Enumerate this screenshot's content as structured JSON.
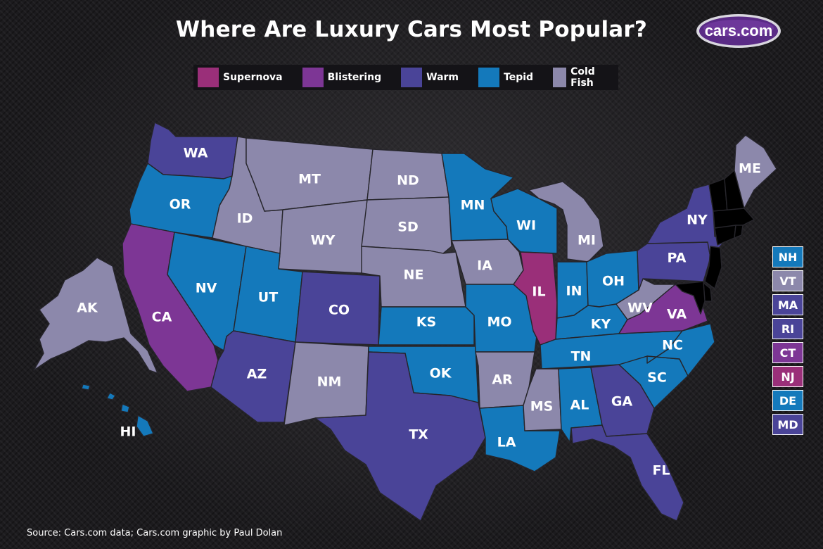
{
  "title": "Where Are Luxury Cars Most Popular?",
  "logo_text": "cars.com",
  "source": "Source: Cars.com data; Cars.com graphic by Paul Dolan",
  "colors": {
    "Supernova": "#9a2f79",
    "Blistering": "#7d3695",
    "Warm": "#4a4498",
    "Tepid": "#1479bb",
    "Cold Fish": "#8c88ab"
  },
  "legend": [
    {
      "label": "Supernova",
      "category": "Supernova"
    },
    {
      "label": "Blistering",
      "category": "Blistering"
    },
    {
      "label": "Warm",
      "category": "Warm"
    },
    {
      "label": "Tepid",
      "category": "Tepid"
    },
    {
      "label": "Cold Fish",
      "category": "Cold Fish"
    }
  ],
  "states": {
    "WA": {
      "label": "WA",
      "category": "Warm"
    },
    "OR": {
      "label": "OR",
      "category": "Tepid"
    },
    "CA": {
      "label": "CA",
      "category": "Blistering"
    },
    "NV": {
      "label": "NV",
      "category": "Tepid"
    },
    "ID": {
      "label": "ID",
      "category": "Cold Fish"
    },
    "MT": {
      "label": "MT",
      "category": "Cold Fish"
    },
    "WY": {
      "label": "WY",
      "category": "Cold Fish"
    },
    "UT": {
      "label": "UT",
      "category": "Tepid"
    },
    "AZ": {
      "label": "AZ",
      "category": "Warm"
    },
    "CO": {
      "label": "CO",
      "category": "Warm"
    },
    "NM": {
      "label": "NM",
      "category": "Cold Fish"
    },
    "ND": {
      "label": "ND",
      "category": "Cold Fish"
    },
    "SD": {
      "label": "SD",
      "category": "Cold Fish"
    },
    "NE": {
      "label": "NE",
      "category": "Cold Fish"
    },
    "KS": {
      "label": "KS",
      "category": "Tepid"
    },
    "OK": {
      "label": "OK",
      "category": "Tepid"
    },
    "TX": {
      "label": "TX",
      "category": "Warm"
    },
    "MN": {
      "label": "MN",
      "category": "Tepid"
    },
    "IA": {
      "label": "IA",
      "category": "Cold Fish"
    },
    "MO": {
      "label": "MO",
      "category": "Tepid"
    },
    "AR": {
      "label": "AR",
      "category": "Cold Fish"
    },
    "LA": {
      "label": "LA",
      "category": "Tepid"
    },
    "WI": {
      "label": "WI",
      "category": "Tepid"
    },
    "IL": {
      "label": "IL",
      "category": "Supernova"
    },
    "MI": {
      "label": "MI",
      "category": "Cold Fish"
    },
    "IN": {
      "label": "IN",
      "category": "Tepid"
    },
    "OH": {
      "label": "OH",
      "category": "Tepid"
    },
    "KY": {
      "label": "KY",
      "category": "Tepid"
    },
    "TN": {
      "label": "TN",
      "category": "Tepid"
    },
    "MS": {
      "label": "MS",
      "category": "Cold Fish"
    },
    "AL": {
      "label": "AL",
      "category": "Tepid"
    },
    "GA": {
      "label": "GA",
      "category": "Warm"
    },
    "FL": {
      "label": "FL",
      "category": "Warm"
    },
    "SC": {
      "label": "SC",
      "category": "Tepid"
    },
    "NC": {
      "label": "NC",
      "category": "Tepid"
    },
    "VA": {
      "label": "VA",
      "category": "Blistering"
    },
    "WV": {
      "label": "WV",
      "category": "Cold Fish"
    },
    "PA": {
      "label": "PA",
      "category": "Warm"
    },
    "NY": {
      "label": "NY",
      "category": "Warm"
    },
    "ME": {
      "label": "ME",
      "category": "Cold Fish"
    },
    "AK": {
      "label": "AK",
      "category": "Cold Fish"
    },
    "HI": {
      "label": "HI",
      "category": "Tepid"
    }
  },
  "small_states": [
    {
      "label": "NH",
      "category": "Tepid"
    },
    {
      "label": "VT",
      "category": "Cold Fish"
    },
    {
      "label": "MA",
      "category": "Warm"
    },
    {
      "label": "RI",
      "category": "Warm"
    },
    {
      "label": "CT",
      "category": "Blistering"
    },
    {
      "label": "NJ",
      "category": "Supernova"
    },
    {
      "label": "DE",
      "category": "Tepid"
    },
    {
      "label": "MD",
      "category": "Warm"
    }
  ]
}
